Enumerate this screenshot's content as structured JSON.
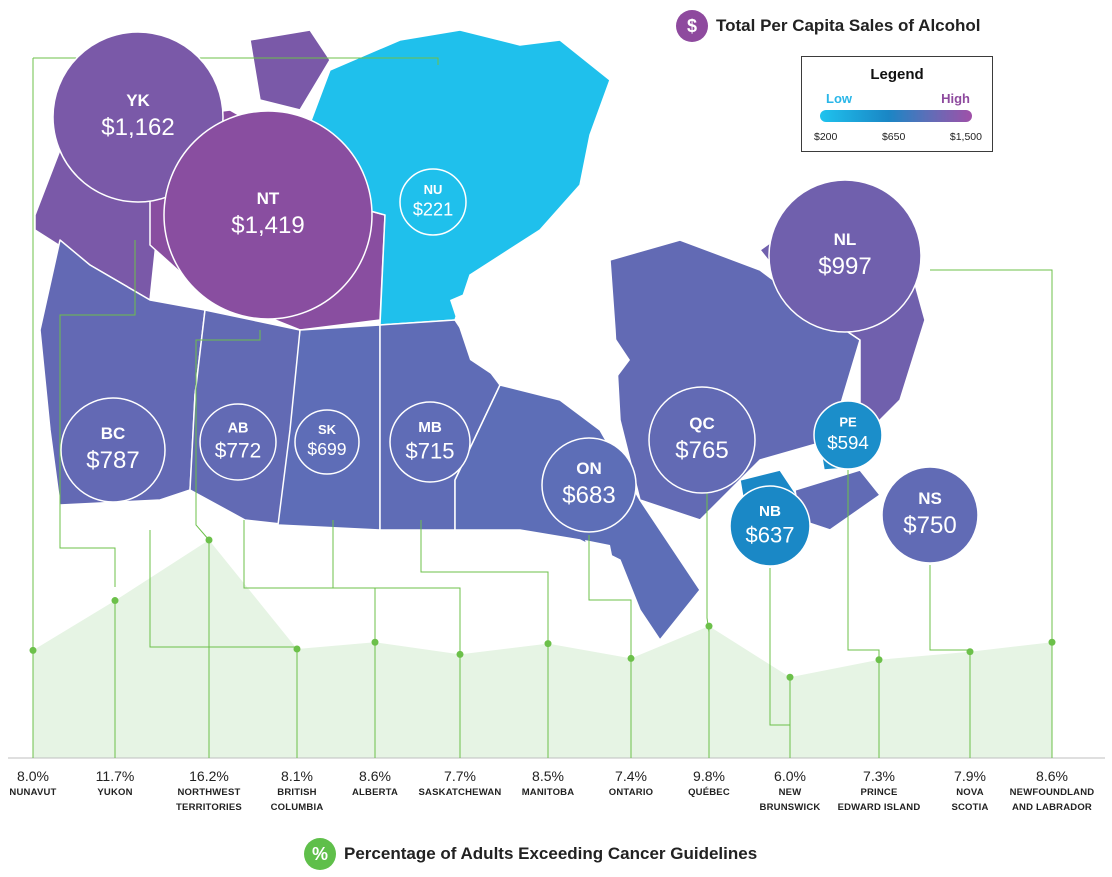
{
  "top_title": {
    "icon": "dollar-icon",
    "icon_glyph": "$",
    "text": "Total Per Capita Sales of Alcohol",
    "color": "#8e4a9e"
  },
  "bottom_title": {
    "icon": "percent-icon",
    "icon_glyph": "%",
    "text": "Percentage of Adults Exceeding Cancer Guidelines",
    "color": "#5fbf4a"
  },
  "legend": {
    "title": "Legend",
    "low": "Low",
    "high": "High",
    "ticks": [
      "$200",
      "$650",
      "$1,500"
    ]
  },
  "colors": {
    "low": "#1fc3ee",
    "mid": "#1a86c5",
    "high": "#8e4a9e",
    "area": "#e6f4e4",
    "green": "#6cc04a"
  },
  "chart_data": [
    {
      "type": "bubble-map",
      "title": "Total Per Capita Sales of Alcohol",
      "scale": {
        "min": 200,
        "mid": 650,
        "max": 1500
      },
      "provinces": [
        {
          "code": "YK",
          "label": "$1,162",
          "value": 1162
        },
        {
          "code": "NT",
          "label": "$1,419",
          "value": 1419
        },
        {
          "code": "NU",
          "label": "$221",
          "value": 221
        },
        {
          "code": "NL",
          "label": "$997",
          "value": 997
        },
        {
          "code": "BC",
          "label": "$787",
          "value": 787
        },
        {
          "code": "AB",
          "label": "$772",
          "value": 772
        },
        {
          "code": "SK",
          "label": "$699",
          "value": 699
        },
        {
          "code": "MB",
          "label": "$715",
          "value": 715
        },
        {
          "code": "ON",
          "label": "$683",
          "value": 683
        },
        {
          "code": "QC",
          "label": "$765",
          "value": 765
        },
        {
          "code": "PE",
          "label": "$594",
          "value": 594
        },
        {
          "code": "NB",
          "label": "$637",
          "value": 637
        },
        {
          "code": "NS",
          "label": "$750",
          "value": 750
        }
      ]
    },
    {
      "type": "area",
      "title": "Percentage of Adults Exceeding Cancer Guidelines",
      "categories": [
        [
          "NUNAVUT"
        ],
        [
          "YUKON"
        ],
        [
          "NORTHWEST",
          "TERRITORIES"
        ],
        [
          "BRITISH",
          "COLUMBIA"
        ],
        [
          "ALBERTA"
        ],
        [
          "SASKATCHEWAN"
        ],
        [
          "MANITOBA"
        ],
        [
          "ONTARIO"
        ],
        [
          "QUÉBEC"
        ],
        [
          "NEW",
          "BRUNSWICK"
        ],
        [
          "PRINCE",
          "EDWARD ISLAND"
        ],
        [
          "NOVA",
          "SCOTIA"
        ],
        [
          "NEWFOUNDLAND",
          "AND LABRADOR"
        ]
      ],
      "values": [
        8.0,
        11.7,
        16.2,
        8.1,
        8.6,
        7.7,
        8.5,
        7.4,
        9.8,
        6.0,
        7.3,
        7.9,
        8.6
      ],
      "labels": [
        "8.0%",
        "11.7%",
        "16.2%",
        "8.1%",
        "8.6%",
        "7.7%",
        "8.5%",
        "7.4%",
        "9.8%",
        "6.0%",
        "7.3%",
        "7.9%",
        "8.6%"
      ]
    }
  ]
}
